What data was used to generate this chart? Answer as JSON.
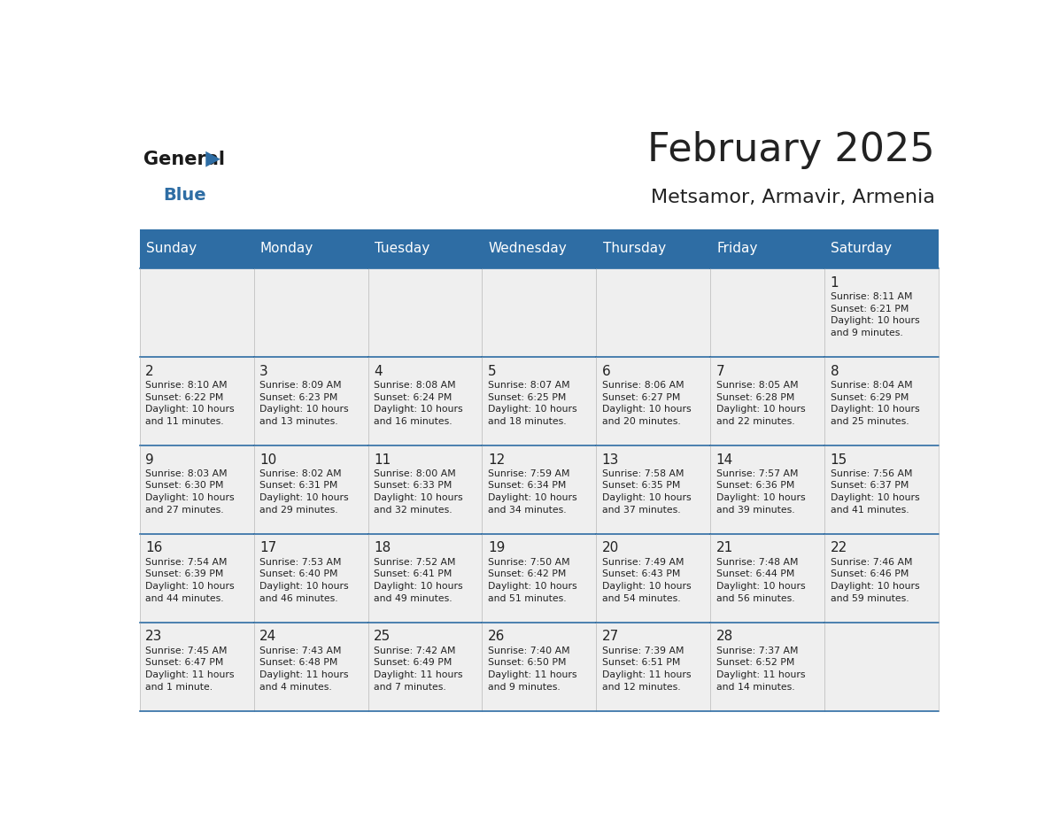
{
  "title": "February 2025",
  "subtitle": "Metsamor, Armavir, Armenia",
  "header_bg": "#2E6DA4",
  "header_text_color": "#FFFFFF",
  "cell_bg_light": "#EFEFEF",
  "border_color": "#2E6DA4",
  "text_color_dark": "#222222",
  "days_of_week": [
    "Sunday",
    "Monday",
    "Tuesday",
    "Wednesday",
    "Thursday",
    "Friday",
    "Saturday"
  ],
  "weeks": [
    [
      {
        "day": null,
        "info": null
      },
      {
        "day": null,
        "info": null
      },
      {
        "day": null,
        "info": null
      },
      {
        "day": null,
        "info": null
      },
      {
        "day": null,
        "info": null
      },
      {
        "day": null,
        "info": null
      },
      {
        "day": 1,
        "info": "Sunrise: 8:11 AM\nSunset: 6:21 PM\nDaylight: 10 hours\nand 9 minutes."
      }
    ],
    [
      {
        "day": 2,
        "info": "Sunrise: 8:10 AM\nSunset: 6:22 PM\nDaylight: 10 hours\nand 11 minutes."
      },
      {
        "day": 3,
        "info": "Sunrise: 8:09 AM\nSunset: 6:23 PM\nDaylight: 10 hours\nand 13 minutes."
      },
      {
        "day": 4,
        "info": "Sunrise: 8:08 AM\nSunset: 6:24 PM\nDaylight: 10 hours\nand 16 minutes."
      },
      {
        "day": 5,
        "info": "Sunrise: 8:07 AM\nSunset: 6:25 PM\nDaylight: 10 hours\nand 18 minutes."
      },
      {
        "day": 6,
        "info": "Sunrise: 8:06 AM\nSunset: 6:27 PM\nDaylight: 10 hours\nand 20 minutes."
      },
      {
        "day": 7,
        "info": "Sunrise: 8:05 AM\nSunset: 6:28 PM\nDaylight: 10 hours\nand 22 minutes."
      },
      {
        "day": 8,
        "info": "Sunrise: 8:04 AM\nSunset: 6:29 PM\nDaylight: 10 hours\nand 25 minutes."
      }
    ],
    [
      {
        "day": 9,
        "info": "Sunrise: 8:03 AM\nSunset: 6:30 PM\nDaylight: 10 hours\nand 27 minutes."
      },
      {
        "day": 10,
        "info": "Sunrise: 8:02 AM\nSunset: 6:31 PM\nDaylight: 10 hours\nand 29 minutes."
      },
      {
        "day": 11,
        "info": "Sunrise: 8:00 AM\nSunset: 6:33 PM\nDaylight: 10 hours\nand 32 minutes."
      },
      {
        "day": 12,
        "info": "Sunrise: 7:59 AM\nSunset: 6:34 PM\nDaylight: 10 hours\nand 34 minutes."
      },
      {
        "day": 13,
        "info": "Sunrise: 7:58 AM\nSunset: 6:35 PM\nDaylight: 10 hours\nand 37 minutes."
      },
      {
        "day": 14,
        "info": "Sunrise: 7:57 AM\nSunset: 6:36 PM\nDaylight: 10 hours\nand 39 minutes."
      },
      {
        "day": 15,
        "info": "Sunrise: 7:56 AM\nSunset: 6:37 PM\nDaylight: 10 hours\nand 41 minutes."
      }
    ],
    [
      {
        "day": 16,
        "info": "Sunrise: 7:54 AM\nSunset: 6:39 PM\nDaylight: 10 hours\nand 44 minutes."
      },
      {
        "day": 17,
        "info": "Sunrise: 7:53 AM\nSunset: 6:40 PM\nDaylight: 10 hours\nand 46 minutes."
      },
      {
        "day": 18,
        "info": "Sunrise: 7:52 AM\nSunset: 6:41 PM\nDaylight: 10 hours\nand 49 minutes."
      },
      {
        "day": 19,
        "info": "Sunrise: 7:50 AM\nSunset: 6:42 PM\nDaylight: 10 hours\nand 51 minutes."
      },
      {
        "day": 20,
        "info": "Sunrise: 7:49 AM\nSunset: 6:43 PM\nDaylight: 10 hours\nand 54 minutes."
      },
      {
        "day": 21,
        "info": "Sunrise: 7:48 AM\nSunset: 6:44 PM\nDaylight: 10 hours\nand 56 minutes."
      },
      {
        "day": 22,
        "info": "Sunrise: 7:46 AM\nSunset: 6:46 PM\nDaylight: 10 hours\nand 59 minutes."
      }
    ],
    [
      {
        "day": 23,
        "info": "Sunrise: 7:45 AM\nSunset: 6:47 PM\nDaylight: 11 hours\nand 1 minute."
      },
      {
        "day": 24,
        "info": "Sunrise: 7:43 AM\nSunset: 6:48 PM\nDaylight: 11 hours\nand 4 minutes."
      },
      {
        "day": 25,
        "info": "Sunrise: 7:42 AM\nSunset: 6:49 PM\nDaylight: 11 hours\nand 7 minutes."
      },
      {
        "day": 26,
        "info": "Sunrise: 7:40 AM\nSunset: 6:50 PM\nDaylight: 11 hours\nand 9 minutes."
      },
      {
        "day": 27,
        "info": "Sunrise: 7:39 AM\nSunset: 6:51 PM\nDaylight: 11 hours\nand 12 minutes."
      },
      {
        "day": 28,
        "info": "Sunrise: 7:37 AM\nSunset: 6:52 PM\nDaylight: 11 hours\nand 14 minutes."
      },
      {
        "day": null,
        "info": null
      }
    ]
  ]
}
